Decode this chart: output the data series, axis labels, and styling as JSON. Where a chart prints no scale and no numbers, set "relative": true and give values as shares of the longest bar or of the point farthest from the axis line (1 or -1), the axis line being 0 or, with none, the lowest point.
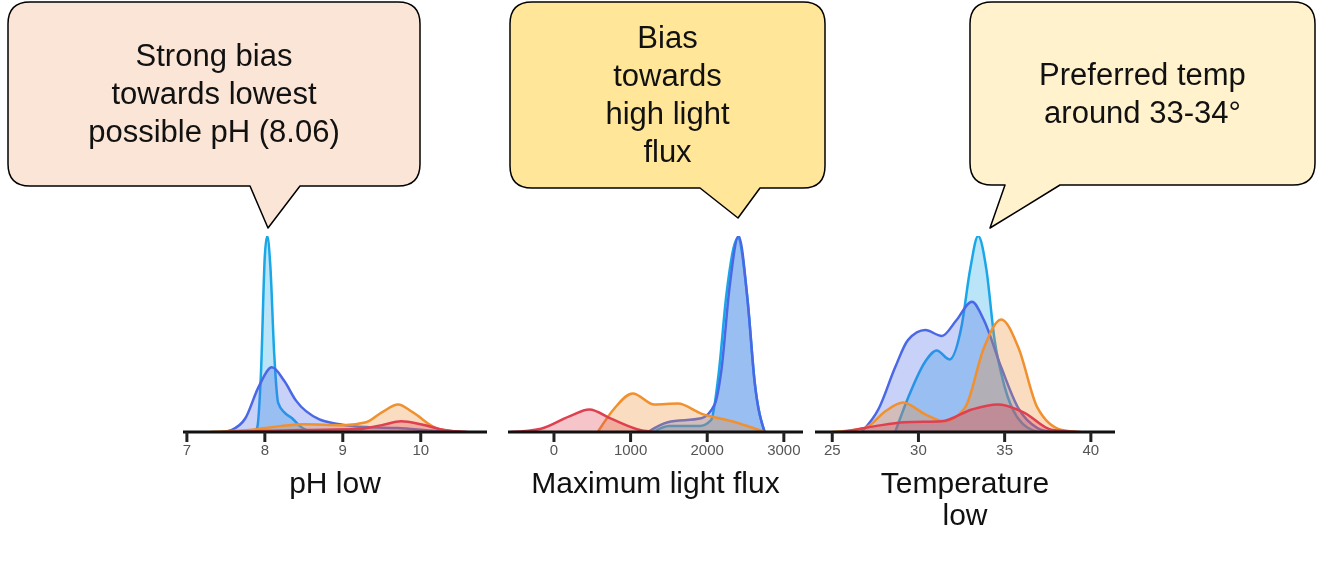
{
  "chart_data": [
    {
      "type": "area",
      "relative": true,
      "xlabel": "pH low",
      "xlim": [
        6.95,
        10.85
      ],
      "xticks": [
        7,
        8,
        9,
        10
      ],
      "annotations": [
        "Strong bias towards lowest possible pH (8.06)"
      ],
      "series": [
        {
          "color": "#1aa7e8",
          "x": [
            7.85,
            7.9,
            7.95,
            8.0,
            8.03,
            8.07,
            8.12,
            8.17,
            8.25,
            8.35,
            8.45,
            8.6
          ],
          "values": [
            0,
            0.02,
            0.3,
            0.9,
            1,
            0.85,
            0.4,
            0.15,
            0.1,
            0.07,
            0.03,
            0
          ]
        },
        {
          "color": "#4a68e6",
          "x": [
            7.45,
            7.57,
            7.75,
            7.92,
            8.09,
            8.25,
            8.4,
            8.7,
            8.96,
            9.3,
            9.7,
            10.2,
            10.5
          ],
          "values": [
            0,
            0.01,
            0.07,
            0.23,
            0.33,
            0.26,
            0.16,
            0.064,
            0.04,
            0.025,
            0.02,
            0.005,
            0
          ]
        },
        {
          "color": "#f0902e",
          "x": [
            7.3,
            7.8,
            8.2,
            8.5,
            9.0,
            9.3,
            9.5,
            9.71,
            9.9,
            10.2,
            10.5
          ],
          "values": [
            0,
            0.01,
            0.03,
            0.04,
            0.035,
            0.05,
            0.1,
            0.14,
            0.1,
            0.02,
            0
          ]
        },
        {
          "color": "#de4050",
          "x": [
            7.5,
            8.5,
            9.2,
            9.5,
            9.75,
            10.0,
            10.3,
            10.6
          ],
          "values": [
            0,
            0.01,
            0.015,
            0.035,
            0.055,
            0.04,
            0.01,
            0
          ]
        }
      ]
    },
    {
      "type": "area",
      "relative": true,
      "xlabel": "Maximum light flux",
      "xlim": [
        -600,
        3250
      ],
      "xticks": [
        0,
        1000,
        2000,
        3000
      ],
      "annotations": [
        "Bias towards high light flux"
      ],
      "series": [
        {
          "color": "#1aa7e8",
          "x": [
            1300,
            1500,
            1900,
            2050,
            2150,
            2250,
            2400,
            2520,
            2620,
            2750
          ],
          "values": [
            0,
            0.03,
            0.03,
            0.06,
            0.3,
            0.7,
            0.99,
            0.7,
            0.25,
            0
          ]
        },
        {
          "color": "#4a68e6",
          "x": [
            1225,
            1486,
            1922,
            2096,
            2183,
            2292,
            2409,
            2532,
            2618,
            2749
          ],
          "values": [
            0,
            0.05,
            0.07,
            0.14,
            0.31,
            0.74,
            1,
            0.65,
            0.26,
            0
          ]
        },
        {
          "color": "#f0902e",
          "x": [
            571,
            788,
            1028,
            1311,
            1617,
            1922,
            2357,
            2749
          ],
          "values": [
            0,
            0.12,
            0.197,
            0.14,
            0.145,
            0.094,
            0.051,
            0
          ]
        },
        {
          "color": "#de4050",
          "x": [
            -562,
            -170,
            200,
            462,
            745,
            1137,
            1300
          ],
          "values": [
            0,
            0.017,
            0.08,
            0.115,
            0.068,
            0.009,
            0
          ]
        }
      ]
    },
    {
      "type": "area",
      "relative": true,
      "xlabel": "Temperature low",
      "xlim": [
        24,
        41.4
      ],
      "xticks": [
        25,
        30,
        35,
        40
      ],
      "annotations": [
        "Preferred temp around 33-34°"
      ],
      "series": [
        {
          "color": "#1aa7e8",
          "x": [
            28.65,
            29.4,
            30.4,
            31.06,
            31.8,
            32.5,
            33,
            33.46,
            33.94,
            34.4,
            35,
            35.77,
            36.9
          ],
          "values": [
            0,
            0.175,
            0.36,
            0.416,
            0.37,
            0.54,
            0.83,
            1,
            0.83,
            0.48,
            0.23,
            0.07,
            0
          ]
        },
        {
          "color": "#4a68e6",
          "x": [
            26.7,
            27.7,
            28.65,
            29.4,
            30.4,
            31.35,
            32.2,
            33.1,
            33.8,
            34.8,
            35.8,
            36.9,
            37.7
          ],
          "values": [
            0,
            0.12,
            0.33,
            0.47,
            0.52,
            0.49,
            0.57,
            0.665,
            0.57,
            0.33,
            0.12,
            0.02,
            0
          ]
        },
        {
          "color": "#f0902e",
          "x": [
            25,
            26.9,
            28.1,
            29.1,
            30.4,
            31.5,
            32.7,
            33.8,
            34.8,
            35.8,
            36.9,
            38.3,
            39.2
          ],
          "values": [
            0,
            0.02,
            0.107,
            0.15,
            0.09,
            0.055,
            0.124,
            0.43,
            0.574,
            0.43,
            0.124,
            0.01,
            0
          ]
        },
        {
          "color": "#de4050",
          "x": [
            25.6,
            27.5,
            29.2,
            31.35,
            33.1,
            34.6,
            36.15,
            37.7,
            39.4
          ],
          "values": [
            0,
            0.03,
            0.05,
            0.055,
            0.115,
            0.14,
            0.098,
            0.012,
            0
          ]
        }
      ]
    }
  ]
}
